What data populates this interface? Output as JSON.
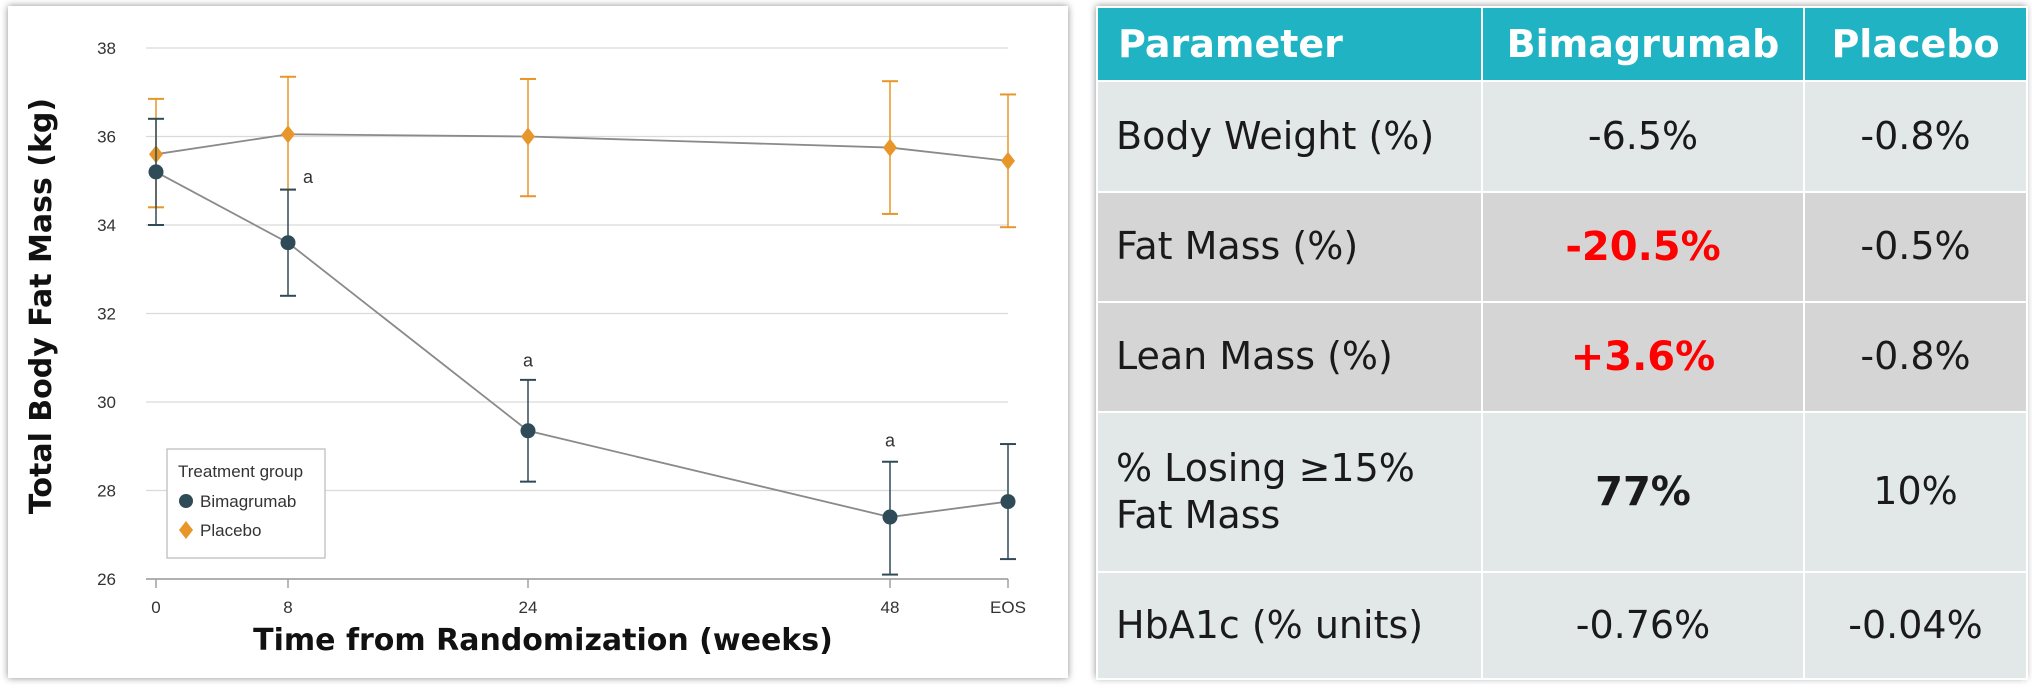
{
  "chart_data": {
    "type": "line",
    "ylabel": "Total Body Fat Mass (kg)",
    "xlabel": "Time from Randomization (weeks)",
    "categories": [
      "0",
      "8",
      "24",
      "48",
      "EOS"
    ],
    "ylim": [
      26,
      38
    ],
    "yticks": [
      26,
      28,
      30,
      32,
      34,
      36,
      38
    ],
    "grid": "horizontal",
    "legend": {
      "title": "Treatment group",
      "placement": "bottom-left"
    },
    "series": [
      {
        "name": "Bimagrumab",
        "color": "#2f4b57",
        "marker": "circle",
        "values": [
          35.2,
          33.6,
          29.35,
          27.4,
          27.75
        ],
        "err_low": [
          34.0,
          32.4,
          28.2,
          26.1,
          26.45
        ],
        "err_high": [
          36.4,
          34.8,
          30.5,
          28.65,
          29.05
        ]
      },
      {
        "name": "Placebo",
        "color": "#e8962a",
        "marker": "diamond",
        "values": [
          35.6,
          36.05,
          36.0,
          35.75,
          35.45
        ],
        "err_low": [
          34.4,
          34.8,
          34.65,
          34.25,
          33.95
        ],
        "err_high": [
          36.85,
          37.35,
          37.3,
          37.25,
          36.95
        ]
      }
    ],
    "annotations": [
      {
        "text": "a",
        "category": "8",
        "y": 34.95
      },
      {
        "text": "a",
        "category": "24",
        "y": 30.8
      },
      {
        "text": "a",
        "category": "48",
        "y": 29.0
      }
    ]
  },
  "table": {
    "headers": [
      "Parameter",
      "Bimagrumab",
      "Placebo"
    ],
    "rows": [
      {
        "parameter": "Body Weight (%)",
        "bimagrumab": "-6.5%",
        "placebo": "-0.8%",
        "style": "light",
        "emphasis": ""
      },
      {
        "parameter": "Fat Mass (%)",
        "bimagrumab": "-20.5%",
        "placebo": "-0.5%",
        "style": "dark",
        "emphasis": "red"
      },
      {
        "parameter": "Lean Mass (%)",
        "bimagrumab": "+3.6%",
        "placebo": "-0.8%",
        "style": "dark",
        "emphasis": "red"
      },
      {
        "parameter_line1": "% Losing ≥15%",
        "parameter_line2": "Fat Mass",
        "bimagrumab": "77%",
        "placebo": "10%",
        "style": "light",
        "emphasis": "bold"
      },
      {
        "parameter": "HbA1c (% units)",
        "bimagrumab": "-0.76%",
        "placebo": "-0.04%",
        "style": "light",
        "emphasis": ""
      }
    ],
    "colors": {
      "header_bg": "#1fb3c4",
      "highlight_red": "#ff0000"
    }
  }
}
